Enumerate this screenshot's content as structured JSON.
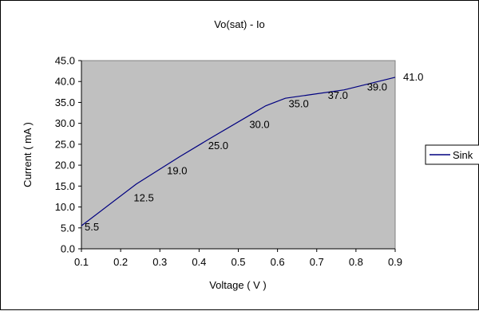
{
  "chart_data": {
    "type": "line",
    "title": "Vo(sat) - Io",
    "xlabel": "Voltage ( V )",
    "ylabel": "Current ( mA )",
    "xlim": [
      0.1,
      0.9
    ],
    "ylim": [
      0.0,
      45.0
    ],
    "x_ticks": [
      "0.1",
      "0.2",
      "0.3",
      "0.4",
      "0.5",
      "0.6",
      "0.7",
      "0.8",
      "0.9"
    ],
    "y_ticks": [
      "0.0",
      "5.0",
      "10.0",
      "15.0",
      "20.0",
      "25.0",
      "30.0",
      "35.0",
      "40.0",
      "45.0"
    ],
    "grid": false,
    "plot_background": "#c0c0c0",
    "legend_position": "right",
    "series": [
      {
        "name": "Sink",
        "color": "#000080",
        "x": [
          0.1,
          0.24,
          0.35,
          0.43,
          0.53,
          0.57,
          0.62,
          0.68,
          0.77,
          0.9
        ],
        "y": [
          5.5,
          15.5,
          22.0,
          26.5,
          32.0,
          34.2,
          36.0,
          36.8,
          38.0,
          41.0
        ]
      }
    ],
    "data_labels": [
      {
        "text": "5.5",
        "x": 0.1,
        "y": 5.5
      },
      {
        "text": "12.5",
        "x": 0.225,
        "y": 12.5
      },
      {
        "text": "19.0",
        "x": 0.31,
        "y": 19.0
      },
      {
        "text": "25.0",
        "x": 0.415,
        "y": 25.0
      },
      {
        "text": "30.0",
        "x": 0.52,
        "y": 30.0
      },
      {
        "text": "35.0",
        "x": 0.62,
        "y": 35.0
      },
      {
        "text": "37.0",
        "x": 0.72,
        "y": 37.0
      },
      {
        "text": "39.0",
        "x": 0.82,
        "y": 39.0
      },
      {
        "text": "41.0",
        "x": 0.9,
        "y": 41.0
      }
    ]
  }
}
